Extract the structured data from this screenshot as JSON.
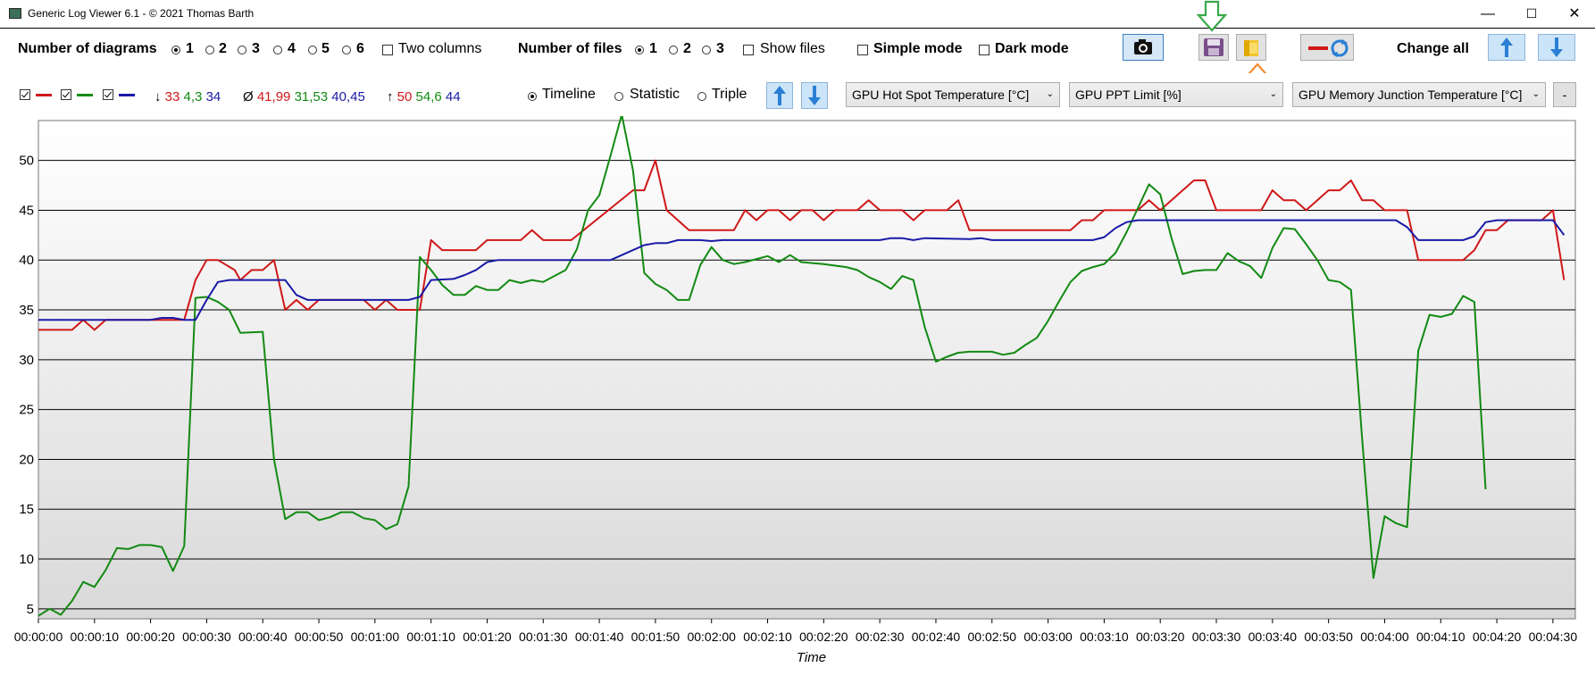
{
  "window": {
    "title": "Generic Log Viewer 6.1 - © 2021 Thomas Barth",
    "minimize": "—",
    "maximize": "☐",
    "close": "✕"
  },
  "toolbar": {
    "diagrams_label": "Number of diagrams",
    "diagram_options": [
      "1",
      "2",
      "3",
      "4",
      "5",
      "6"
    ],
    "diagrams_selected": "1",
    "two_columns_label": "Two columns",
    "files_label": "Number of files",
    "file_options": [
      "1",
      "2",
      "3"
    ],
    "files_selected": "1",
    "show_files_label": "Show files",
    "simple_mode_label": "Simple mode",
    "dark_mode_label": "Dark mode",
    "change_all_label": "Change all",
    "icons": {
      "screenshot": "camera-icon",
      "save": "floppy-disk-icon",
      "open": "folder-icon",
      "swap": "swap-series-icon",
      "up": "arrow-up-icon",
      "down": "arrow-down-icon"
    },
    "annotation_colors": {
      "save_arrow": "#3aa84a",
      "open_arrow": "#f28a2e"
    }
  },
  "diagram_bar": {
    "series_colors": [
      "#d01818",
      "#128a12",
      "#1a1aa8"
    ],
    "min": {
      "symbol": "↓",
      "values": [
        "33",
        "4,3",
        "34"
      ]
    },
    "avg": {
      "symbol": "Ø",
      "values": [
        "41,99",
        "31,53",
        "40,45"
      ]
    },
    "max": {
      "symbol": "↑",
      "values": [
        "50",
        "54,6",
        "44"
      ]
    },
    "view_options": [
      "Timeline",
      "Statistic",
      "Triple"
    ],
    "view_selected": "Timeline",
    "dropdowns": [
      "GPU Hot Spot Temperature [°C]",
      "GPU PPT Limit [%]",
      "GPU Memory Junction Temperature [°C]"
    ],
    "remove_label": "-"
  },
  "chart_data": {
    "type": "line",
    "xlabel": "Time",
    "x_tick_labels": [
      "00:00:00",
      "00:00:10",
      "00:00:20",
      "00:00:30",
      "00:00:40",
      "00:00:50",
      "00:01:00",
      "00:01:10",
      "00:01:20",
      "00:01:30",
      "00:01:40",
      "00:01:50",
      "00:02:00",
      "00:02:10",
      "00:02:20",
      "00:02:30",
      "00:02:40",
      "00:02:50",
      "00:03:00",
      "00:03:10",
      "00:03:20",
      "00:03:30",
      "00:03:40",
      "00:03:50",
      "00:04:00",
      "00:04:10",
      "00:04:20",
      "00:04:30"
    ],
    "xlim": [
      0,
      274
    ],
    "ylim": [
      4,
      54
    ],
    "y_ticks": [
      5,
      10,
      15,
      20,
      25,
      30,
      35,
      40,
      45,
      50
    ],
    "grid": "horizontal",
    "series": [
      {
        "color": "#d01818",
        "points": [
          [
            0,
            33
          ],
          [
            6,
            33
          ],
          [
            8,
            34
          ],
          [
            10,
            33
          ],
          [
            12,
            34
          ],
          [
            26,
            34
          ],
          [
            28,
            38
          ],
          [
            30,
            40
          ],
          [
            32,
            40
          ],
          [
            35,
            39
          ],
          [
            36,
            38
          ],
          [
            38,
            39
          ],
          [
            40,
            39
          ],
          [
            42,
            40
          ],
          [
            44,
            35
          ],
          [
            46,
            36
          ],
          [
            48,
            35
          ],
          [
            50,
            36
          ],
          [
            58,
            36
          ],
          [
            60,
            35
          ],
          [
            62,
            36
          ],
          [
            64,
            35
          ],
          [
            68,
            35
          ],
          [
            70,
            42
          ],
          [
            72,
            41
          ],
          [
            78,
            41
          ],
          [
            80,
            42
          ],
          [
            86,
            42
          ],
          [
            88,
            43
          ],
          [
            90,
            42
          ],
          [
            95,
            42
          ],
          [
            106,
            47
          ],
          [
            108,
            47
          ],
          [
            110,
            50
          ],
          [
            112,
            45
          ],
          [
            116,
            43
          ],
          [
            124,
            43
          ],
          [
            126,
            45
          ],
          [
            128,
            44
          ],
          [
            130,
            45
          ],
          [
            132,
            45
          ],
          [
            134,
            44
          ],
          [
            136,
            45
          ],
          [
            138,
            45
          ],
          [
            140,
            44
          ],
          [
            142,
            45
          ],
          [
            146,
            45
          ],
          [
            148,
            46
          ],
          [
            150,
            45
          ],
          [
            154,
            45
          ],
          [
            156,
            44
          ],
          [
            158,
            45
          ],
          [
            162,
            45
          ],
          [
            164,
            46
          ],
          [
            166,
            43
          ],
          [
            184,
            43
          ],
          [
            186,
            44
          ],
          [
            188,
            44
          ],
          [
            190,
            45
          ],
          [
            196,
            45
          ],
          [
            198,
            46
          ],
          [
            200,
            45
          ],
          [
            206,
            48
          ],
          [
            208,
            48
          ],
          [
            210,
            45
          ],
          [
            218,
            45
          ],
          [
            220,
            47
          ],
          [
            222,
            46
          ],
          [
            224,
            46
          ],
          [
            226,
            45
          ],
          [
            228,
            46
          ],
          [
            230,
            47
          ],
          [
            232,
            47
          ],
          [
            234,
            48
          ],
          [
            236,
            46
          ],
          [
            238,
            46
          ],
          [
            240,
            45
          ],
          [
            244,
            45
          ],
          [
            246,
            40
          ],
          [
            254,
            40
          ],
          [
            256,
            41
          ],
          [
            258,
            43
          ],
          [
            260,
            43
          ],
          [
            262,
            44
          ],
          [
            268,
            44
          ],
          [
            270,
            45
          ],
          [
            272,
            38
          ]
        ]
      },
      {
        "color": "#128a12",
        "points": [
          [
            0,
            4.3
          ],
          [
            2,
            5
          ],
          [
            4,
            4.4
          ],
          [
            6,
            5.8
          ],
          [
            8,
            7.7
          ],
          [
            10,
            7.2
          ],
          [
            12,
            8.9
          ],
          [
            14,
            11.1
          ],
          [
            16,
            11
          ],
          [
            18,
            11.4
          ],
          [
            20,
            11.4
          ],
          [
            22,
            11.2
          ],
          [
            24,
            8.8
          ],
          [
            26,
            11.3
          ],
          [
            28,
            36.2
          ],
          [
            30,
            36.3
          ],
          [
            32,
            35.8
          ],
          [
            34,
            35
          ],
          [
            36,
            32.7
          ],
          [
            40,
            32.8
          ],
          [
            42,
            20
          ],
          [
            44,
            14
          ],
          [
            46,
            14.7
          ],
          [
            48,
            14.7
          ],
          [
            50,
            13.9
          ],
          [
            52,
            14.2
          ],
          [
            54,
            14.7
          ],
          [
            56,
            14.7
          ],
          [
            58,
            14.1
          ],
          [
            60,
            13.9
          ],
          [
            62,
            13
          ],
          [
            64,
            13.5
          ],
          [
            66,
            17.3
          ],
          [
            68,
            40.3
          ],
          [
            70,
            39
          ],
          [
            72,
            37.5
          ],
          [
            74,
            36.5
          ],
          [
            76,
            36.5
          ],
          [
            78,
            37.4
          ],
          [
            80,
            37
          ],
          [
            82,
            37
          ],
          [
            84,
            38
          ],
          [
            86,
            37.7
          ],
          [
            88,
            38
          ],
          [
            90,
            37.8
          ],
          [
            94,
            39
          ],
          [
            96,
            41.1
          ],
          [
            98,
            45
          ],
          [
            100,
            46.5
          ],
          [
            102,
            50.5
          ],
          [
            104,
            54.6
          ],
          [
            106,
            49
          ],
          [
            108,
            38.7
          ],
          [
            110,
            37.6
          ],
          [
            112,
            37
          ],
          [
            114,
            36
          ],
          [
            116,
            36
          ],
          [
            118,
            39.5
          ],
          [
            120,
            41.3
          ],
          [
            122,
            40
          ],
          [
            124,
            39.6
          ],
          [
            126,
            39.8
          ],
          [
            128,
            40.1
          ],
          [
            130,
            40.4
          ],
          [
            132,
            39.8
          ],
          [
            134,
            40.5
          ],
          [
            136,
            39.8
          ],
          [
            140,
            39.6
          ],
          [
            144,
            39.3
          ],
          [
            146,
            39
          ],
          [
            148,
            38.3
          ],
          [
            150,
            37.8
          ],
          [
            152,
            37.1
          ],
          [
            154,
            38.4
          ],
          [
            156,
            38
          ],
          [
            158,
            33.3
          ],
          [
            160,
            29.8
          ],
          [
            162,
            30.3
          ],
          [
            164,
            30.7
          ],
          [
            166,
            30.8
          ],
          [
            168,
            30.8
          ],
          [
            170,
            30.8
          ],
          [
            172,
            30.5
          ],
          [
            174,
            30.7
          ],
          [
            176,
            31.5
          ],
          [
            178,
            32.2
          ],
          [
            180,
            33.9
          ],
          [
            182,
            35.9
          ],
          [
            184,
            37.8
          ],
          [
            186,
            38.9
          ],
          [
            188,
            39.3
          ],
          [
            190,
            39.6
          ],
          [
            192,
            40.7
          ],
          [
            194,
            42.8
          ],
          [
            196,
            45.2
          ],
          [
            198,
            47.6
          ],
          [
            200,
            46.6
          ],
          [
            202,
            42.2
          ],
          [
            204,
            38.6
          ],
          [
            206,
            38.9
          ],
          [
            208,
            39
          ],
          [
            210,
            39
          ],
          [
            212,
            40.7
          ],
          [
            214,
            39.9
          ],
          [
            216,
            39.4
          ],
          [
            218,
            38.2
          ],
          [
            220,
            41.2
          ],
          [
            222,
            43.2
          ],
          [
            224,
            43.1
          ],
          [
            226,
            41.6
          ],
          [
            228,
            40
          ],
          [
            230,
            38
          ],
          [
            232,
            37.8
          ],
          [
            234,
            37
          ],
          [
            236,
            22
          ],
          [
            238,
            8.1
          ],
          [
            240,
            14.3
          ],
          [
            242,
            13.6
          ],
          [
            244,
            13.2
          ],
          [
            246,
            30.9
          ],
          [
            248,
            34.5
          ],
          [
            250,
            34.3
          ],
          [
            252,
            34.6
          ],
          [
            254,
            36.4
          ],
          [
            256,
            35.8
          ],
          [
            258,
            17
          ]
        ]
      },
      {
        "color": "#1a1aa8",
        "points": [
          [
            0,
            34
          ],
          [
            20,
            34
          ],
          [
            22,
            34.2
          ],
          [
            24,
            34.2
          ],
          [
            26,
            34
          ],
          [
            28,
            34
          ],
          [
            30,
            36
          ],
          [
            32,
            37.8
          ],
          [
            34,
            38
          ],
          [
            44,
            38
          ],
          [
            46,
            36.5
          ],
          [
            48,
            36
          ],
          [
            66,
            36
          ],
          [
            68,
            36.3
          ],
          [
            70,
            38
          ],
          [
            74,
            38.1
          ],
          [
            76,
            38.5
          ],
          [
            78,
            39
          ],
          [
            80,
            39.8
          ],
          [
            82,
            40
          ],
          [
            102,
            40
          ],
          [
            104,
            40.5
          ],
          [
            106,
            41
          ],
          [
            108,
            41.5
          ],
          [
            110,
            41.7
          ],
          [
            112,
            41.7
          ],
          [
            114,
            42
          ],
          [
            118,
            42
          ],
          [
            120,
            41.9
          ],
          [
            122,
            42
          ],
          [
            150,
            42
          ],
          [
            152,
            42.2
          ],
          [
            154,
            42.2
          ],
          [
            156,
            42
          ],
          [
            158,
            42.2
          ],
          [
            166,
            42.1
          ],
          [
            168,
            42.2
          ],
          [
            170,
            42
          ],
          [
            188,
            42
          ],
          [
            190,
            42.3
          ],
          [
            192,
            43.2
          ],
          [
            194,
            43.8
          ],
          [
            196,
            44
          ],
          [
            242,
            44
          ],
          [
            244,
            43.3
          ],
          [
            246,
            42
          ],
          [
            254,
            42
          ],
          [
            256,
            42.4
          ],
          [
            258,
            43.8
          ],
          [
            260,
            44
          ],
          [
            270,
            44
          ],
          [
            272,
            42.5
          ]
        ]
      }
    ]
  }
}
